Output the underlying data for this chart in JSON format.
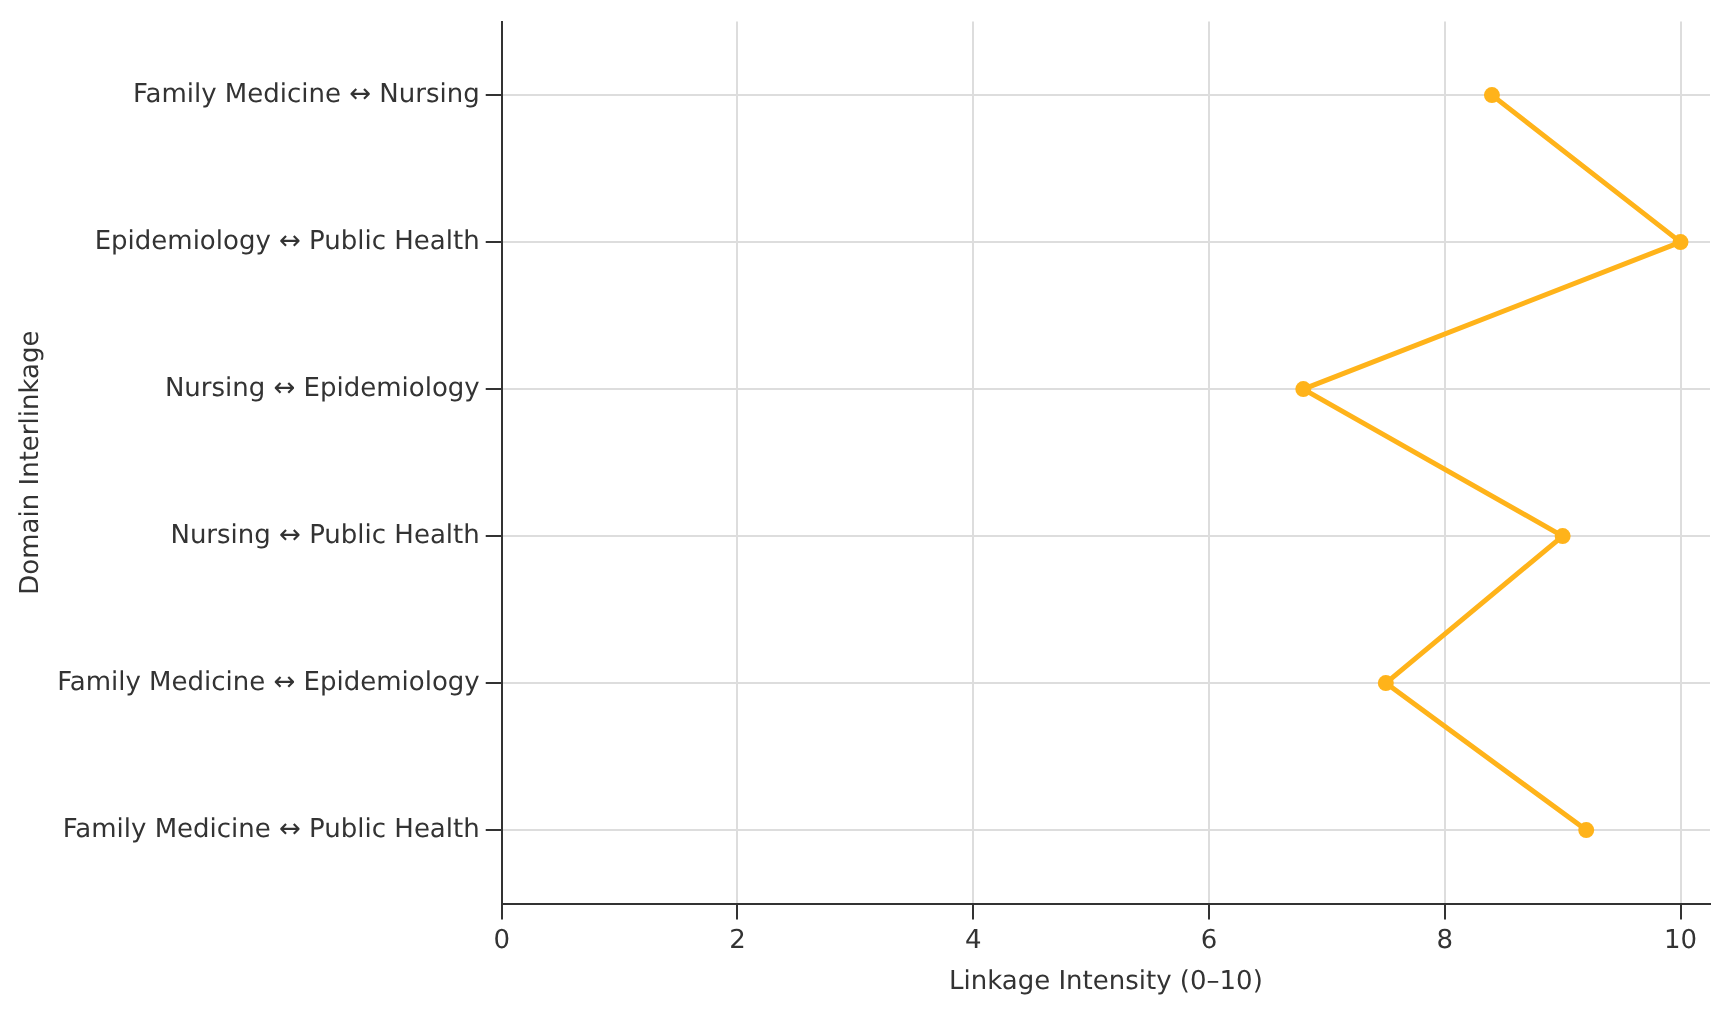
{
  "chart_data": {
    "type": "line",
    "orientation": "horizontal",
    "xlabel": "Linkage Intensity (0–10)",
    "ylabel": "Domain Interlinkage",
    "categories": [
      "Family Medicine ↔ Nursing",
      "Epidemiology ↔ Public Health",
      "Nursing ↔ Epidemiology",
      "Nursing ↔ Public Health",
      "Family Medicine ↔ Epidemiology",
      "Family Medicine ↔ Public Health"
    ],
    "values": [
      8.4,
      10,
      6.8,
      9.0,
      7.5,
      9.2
    ],
    "color": "#ffb31a",
    "xlim": [
      0,
      10.25
    ],
    "xticks": [
      0,
      2,
      4,
      6,
      8,
      10
    ],
    "grid": true,
    "marker": "circle",
    "line_style": "solid"
  }
}
